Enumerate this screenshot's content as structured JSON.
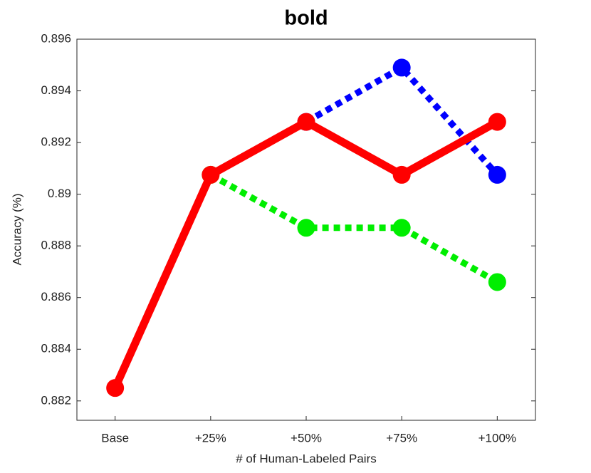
{
  "chart_data": {
    "type": "line",
    "title": "bold",
    "xlabel": "# of Human-Labeled Pairs",
    "ylabel": "Accuracy (%)",
    "categories": [
      "Base",
      "+25%",
      "+50%",
      "+75%",
      "+100%"
    ],
    "series": [
      {
        "color": "#0000ff",
        "linestyle": "dotted",
        "values": [
          null,
          null,
          0.8928,
          0.8949,
          0.89075
        ]
      },
      {
        "color": "#00ee00",
        "linestyle": "dotted",
        "values": [
          null,
          0.89075,
          0.8887,
          0.8887,
          0.8866
        ]
      },
      {
        "color": "#ff0000",
        "linestyle": "solid",
        "values": [
          0.8825,
          0.89075,
          0.8928,
          0.89075,
          0.8928
        ]
      }
    ],
    "ylim": [
      0.88125,
      0.896
    ],
    "yticks": [
      0.882,
      0.884,
      0.886,
      0.888,
      0.89,
      0.892,
      0.894,
      0.896
    ],
    "grid": false
  }
}
